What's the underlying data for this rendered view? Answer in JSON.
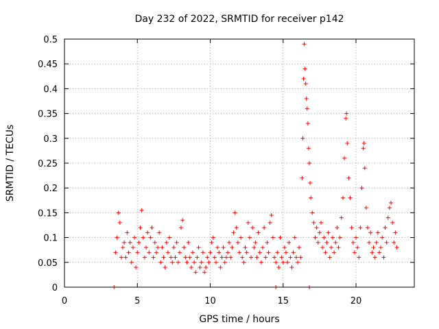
{
  "chart_data": {
    "type": "scatter",
    "title": "Day 232 of 2022, SRMTID for receiver p142",
    "xlabel": "GPS time / hours",
    "ylabel": "SRMTID / TECUs",
    "xlim": [
      0,
      24
    ],
    "ylim": [
      0,
      0.5
    ],
    "xticks": [
      0,
      5,
      10,
      15,
      20
    ],
    "yticks": [
      0,
      0.05,
      0.1,
      0.15,
      0.2,
      0.25,
      0.3,
      0.35,
      0.4,
      0.45,
      0.5
    ],
    "grid": true,
    "marker": "+",
    "color": "#ff0000",
    "series": [
      {
        "name": "SRMTID",
        "points": [
          [
            3.4,
            0
          ],
          [
            14.5,
            0
          ],
          [
            16.8,
            0
          ],
          [
            3.5,
            0.07
          ],
          [
            3.6,
            0.1
          ],
          [
            3.7,
            0.15
          ],
          [
            3.8,
            0.13
          ],
          [
            3.9,
            0.06
          ],
          [
            4.0,
            0.08
          ],
          [
            4.1,
            0.09
          ],
          [
            4.2,
            0.06
          ],
          [
            4.3,
            0.11
          ],
          [
            4.4,
            0.07
          ],
          [
            4.5,
            0.09
          ],
          [
            4.6,
            0.05
          ],
          [
            4.7,
            0.08
          ],
          [
            4.8,
            0.1
          ],
          [
            4.9,
            0.04
          ],
          [
            5.0,
            0.07
          ],
          [
            5.1,
            0.09
          ],
          [
            5.2,
            0.12
          ],
          [
            5.3,
            0.155
          ],
          [
            5.4,
            0.1
          ],
          [
            5.5,
            0.06
          ],
          [
            5.6,
            0.08
          ],
          [
            5.7,
            0.11
          ],
          [
            5.8,
            0.07
          ],
          [
            5.9,
            0.1
          ],
          [
            6.0,
            0.12
          ],
          [
            6.1,
            0.06
          ],
          [
            6.2,
            0.09
          ],
          [
            6.3,
            0.07
          ],
          [
            6.4,
            0.08
          ],
          [
            6.5,
            0.11
          ],
          [
            6.6,
            0.05
          ],
          [
            6.7,
            0.08
          ],
          [
            6.8,
            0.06
          ],
          [
            6.9,
            0.04
          ],
          [
            7.0,
            0.09
          ],
          [
            7.1,
            0.07
          ],
          [
            7.2,
            0.1
          ],
          [
            7.3,
            0.06
          ],
          [
            7.4,
            0.05
          ],
          [
            7.5,
            0.08
          ],
          [
            7.6,
            0.06
          ],
          [
            7.7,
            0.09
          ],
          [
            7.8,
            0.05
          ],
          [
            7.9,
            0.07
          ],
          [
            8.0,
            0.12
          ],
          [
            8.1,
            0.135
          ],
          [
            8.2,
            0.08
          ],
          [
            8.3,
            0.06
          ],
          [
            8.4,
            0.05
          ],
          [
            8.5,
            0.09
          ],
          [
            8.6,
            0.06
          ],
          [
            8.7,
            0.04
          ],
          [
            8.8,
            0.07
          ],
          [
            8.9,
            0.05
          ],
          [
            9.0,
            0.03
          ],
          [
            9.1,
            0.06
          ],
          [
            9.2,
            0.08
          ],
          [
            9.3,
            0.04
          ],
          [
            9.4,
            0.05
          ],
          [
            9.5,
            0.07
          ],
          [
            9.6,
            0.03
          ],
          [
            9.7,
            0.04
          ],
          [
            9.8,
            0.06
          ],
          [
            9.9,
            0.05
          ],
          [
            10.0,
            0.07
          ],
          [
            10.1,
            0.09
          ],
          [
            10.2,
            0.1
          ],
          [
            10.3,
            0.06
          ],
          [
            10.4,
            0.05
          ],
          [
            10.5,
            0.08
          ],
          [
            10.6,
            0.07
          ],
          [
            10.7,
            0.04
          ],
          [
            10.8,
            0.06
          ],
          [
            10.9,
            0.08
          ],
          [
            11.0,
            0.05
          ],
          [
            11.1,
            0.06
          ],
          [
            11.2,
            0.07
          ],
          [
            11.3,
            0.09
          ],
          [
            11.4,
            0.06
          ],
          [
            11.5,
            0.08
          ],
          [
            11.6,
            0.11
          ],
          [
            11.7,
            0.15
          ],
          [
            11.8,
            0.12
          ],
          [
            11.9,
            0.09
          ],
          [
            12.0,
            0.07
          ],
          [
            12.1,
            0.1
          ],
          [
            12.2,
            0.06
          ],
          [
            12.3,
            0.05
          ],
          [
            12.4,
            0.08
          ],
          [
            12.5,
            0.07
          ],
          [
            12.6,
            0.13
          ],
          [
            12.7,
            0.1
          ],
          [
            12.8,
            0.06
          ],
          [
            12.9,
            0.12
          ],
          [
            13.0,
            0.08
          ],
          [
            13.1,
            0.09
          ],
          [
            13.2,
            0.06
          ],
          [
            13.3,
            0.11
          ],
          [
            13.4,
            0.07
          ],
          [
            13.5,
            0.05
          ],
          [
            13.6,
            0.08
          ],
          [
            13.7,
            0.12
          ],
          [
            13.8,
            0.06
          ],
          [
            13.9,
            0.09
          ],
          [
            14.0,
            0.07
          ],
          [
            14.1,
            0.13
          ],
          [
            14.2,
            0.145
          ],
          [
            14.3,
            0.1
          ],
          [
            14.4,
            0.06
          ],
          [
            14.5,
            0.05
          ],
          [
            14.6,
            0.07
          ],
          [
            14.7,
            0.04
          ],
          [
            14.8,
            0.1
          ],
          [
            14.9,
            0.06
          ],
          [
            15.0,
            0.05
          ],
          [
            15.1,
            0.08
          ],
          [
            15.2,
            0.07
          ],
          [
            15.3,
            0.05
          ],
          [
            15.4,
            0.09
          ],
          [
            15.5,
            0.06
          ],
          [
            15.6,
            0.04
          ],
          [
            15.7,
            0.07
          ],
          [
            15.8,
            0.1
          ],
          [
            15.9,
            0.06
          ],
          [
            16.0,
            0.05
          ],
          [
            16.1,
            0.08
          ],
          [
            16.2,
            0.06
          ],
          [
            16.3,
            0.22
          ],
          [
            16.35,
            0.3
          ],
          [
            16.4,
            0.42
          ],
          [
            16.45,
            0.49
          ],
          [
            16.5,
            0.44
          ],
          [
            16.55,
            0.41
          ],
          [
            16.6,
            0.38
          ],
          [
            16.65,
            0.36
          ],
          [
            16.7,
            0.33
          ],
          [
            16.75,
            0.28
          ],
          [
            16.8,
            0.25
          ],
          [
            16.85,
            0.21
          ],
          [
            16.9,
            0.18
          ],
          [
            17.0,
            0.15
          ],
          [
            17.1,
            0.13
          ],
          [
            17.2,
            0.1
          ],
          [
            17.3,
            0.12
          ],
          [
            17.4,
            0.09
          ],
          [
            17.5,
            0.11
          ],
          [
            17.6,
            0.13
          ],
          [
            17.7,
            0.08
          ],
          [
            17.8,
            0.1
          ],
          [
            17.9,
            0.07
          ],
          [
            18.0,
            0.09
          ],
          [
            18.1,
            0.11
          ],
          [
            18.2,
            0.06
          ],
          [
            18.3,
            0.08
          ],
          [
            18.4,
            0.1
          ],
          [
            18.5,
            0.07
          ],
          [
            18.6,
            0.09
          ],
          [
            18.7,
            0.12
          ],
          [
            18.8,
            0.08
          ],
          [
            18.9,
            0.1
          ],
          [
            19.0,
            0.14
          ],
          [
            19.1,
            0.18
          ],
          [
            19.2,
            0.26
          ],
          [
            19.3,
            0.34
          ],
          [
            19.35,
            0.35
          ],
          [
            19.4,
            0.29
          ],
          [
            19.5,
            0.22
          ],
          [
            19.6,
            0.18
          ],
          [
            19.7,
            0.12
          ],
          [
            19.8,
            0.09
          ],
          [
            19.9,
            0.07
          ],
          [
            20.0,
            0.1
          ],
          [
            20.1,
            0.08
          ],
          [
            20.2,
            0.06
          ],
          [
            20.3,
            0.12
          ],
          [
            20.4,
            0.2
          ],
          [
            20.5,
            0.28
          ],
          [
            20.55,
            0.29
          ],
          [
            20.6,
            0.24
          ],
          [
            20.7,
            0.16
          ],
          [
            20.8,
            0.12
          ],
          [
            20.9,
            0.09
          ],
          [
            21.0,
            0.11
          ],
          [
            21.1,
            0.07
          ],
          [
            21.2,
            0.08
          ],
          [
            21.3,
            0.06
          ],
          [
            21.4,
            0.09
          ],
          [
            21.5,
            0.11
          ],
          [
            21.6,
            0.07
          ],
          [
            21.7,
            0.08
          ],
          [
            21.8,
            0.1
          ],
          [
            21.9,
            0.06
          ],
          [
            22.0,
            0.12
          ],
          [
            22.1,
            0.09
          ],
          [
            22.2,
            0.14
          ],
          [
            22.3,
            0.16
          ],
          [
            22.4,
            0.17
          ],
          [
            22.5,
            0.13
          ],
          [
            22.6,
            0.09
          ],
          [
            22.7,
            0.11
          ],
          [
            22.8,
            0.08
          ]
        ]
      }
    ]
  }
}
